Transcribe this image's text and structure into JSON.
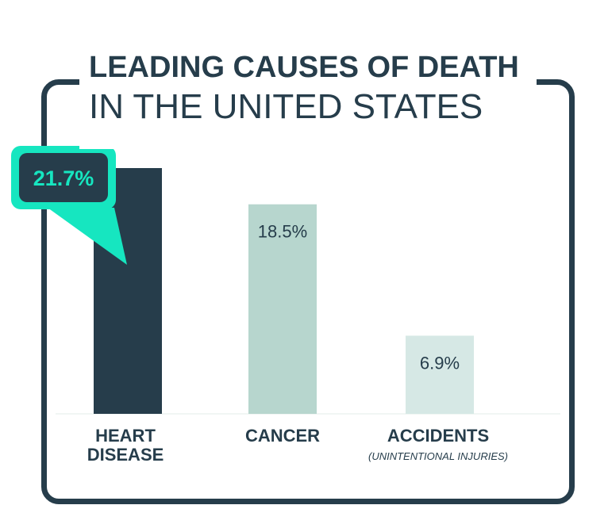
{
  "title": {
    "line1": "LEADING CAUSES OF DEATH",
    "line2": "IN THE UNITED STATES"
  },
  "colors": {
    "frame": "#263d4b",
    "highlight_bar": "#263d4b",
    "bar2": "#b7d6ce",
    "bar3": "#d6e8e5",
    "callout": "#16e6c0",
    "callout_inner": "#263d4b",
    "callout_text": "#16e6c0",
    "text": "#263d4b"
  },
  "chart_data": {
    "type": "bar",
    "categories": [
      "HEART DISEASE",
      "CANCER",
      "ACCIDENTS"
    ],
    "category_sublabels": [
      "",
      "",
      "(UNINTENTIONAL INJURIES)"
    ],
    "values": [
      21.7,
      18.5,
      6.9
    ],
    "value_labels": [
      "21.7%",
      "18.5%",
      "6.9%"
    ],
    "ylim": [
      0,
      21.7
    ],
    "highlight_index": 0,
    "grid": false
  }
}
